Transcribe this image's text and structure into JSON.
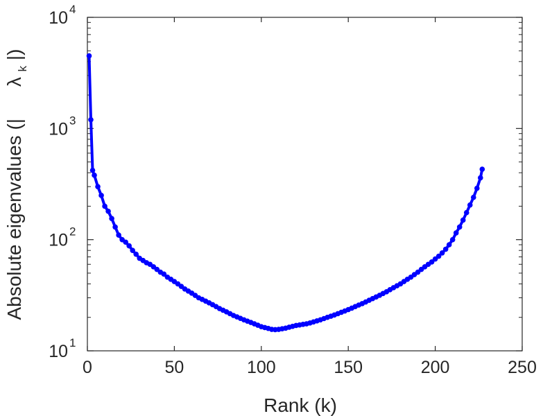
{
  "chart_data": {
    "type": "line",
    "xlabel": "Rank (k)",
    "ylabel": "Absolute eigenvalues (|   λ k|)",
    "ylabel_parts": {
      "prefix": "Absolute eigenvalues (|",
      "lambda": "λ",
      "subscript": "k",
      "suffix": "|)"
    },
    "xlim": [
      0,
      250
    ],
    "ylim": [
      10,
      10000
    ],
    "yscale": "log",
    "x_ticks": [
      {
        "value": 0,
        "label": "0"
      },
      {
        "value": 50,
        "label": "50"
      },
      {
        "value": 100,
        "label": "100"
      },
      {
        "value": 150,
        "label": "150"
      },
      {
        "value": 200,
        "label": "200"
      },
      {
        "value": 250,
        "label": "250"
      }
    ],
    "y_ticks": [
      {
        "value": 10,
        "base": "10",
        "exp": "1"
      },
      {
        "value": 100,
        "base": "10",
        "exp": "2"
      },
      {
        "value": 1000,
        "base": "10",
        "exp": "3"
      },
      {
        "value": 10000,
        "base": "10",
        "exp": "4"
      }
    ],
    "grid": false,
    "color": "#0000ff",
    "series": [
      {
        "marker": "circle",
        "x": [
          1,
          2,
          3,
          4,
          6,
          8,
          10,
          12,
          14,
          16,
          18,
          20,
          22,
          24,
          26,
          28,
          30,
          32,
          34,
          36,
          38,
          40,
          42,
          44,
          46,
          48,
          50,
          52,
          54,
          56,
          58,
          60,
          62,
          64,
          66,
          68,
          70,
          72,
          74,
          76,
          78,
          80,
          82,
          84,
          86,
          88,
          90,
          92,
          94,
          96,
          98,
          100,
          102,
          104,
          106,
          108,
          110,
          112,
          114,
          116,
          118,
          120,
          122,
          124,
          126,
          128,
          130,
          132,
          134,
          136,
          138,
          140,
          142,
          144,
          146,
          148,
          150,
          152,
          154,
          156,
          158,
          160,
          162,
          164,
          166,
          168,
          170,
          172,
          174,
          176,
          178,
          180,
          182,
          184,
          186,
          188,
          190,
          192,
          194,
          196,
          198,
          200,
          202,
          204,
          206,
          208,
          210,
          212,
          214,
          216,
          218,
          220,
          222,
          224,
          226,
          227
        ],
        "y": [
          4500,
          1200,
          420,
          380,
          300,
          250,
          200,
          180,
          155,
          130,
          110,
          100,
          95,
          88,
          80,
          74,
          68,
          65,
          62,
          60,
          57,
          54,
          51,
          49,
          46,
          44,
          42,
          40,
          38,
          36,
          34.5,
          33,
          31.5,
          30,
          29,
          28,
          27,
          26,
          25,
          24,
          23.2,
          22.4,
          21.6,
          20.8,
          20.2,
          19.6,
          19,
          18.5,
          18,
          17.5,
          17,
          16.5,
          16.2,
          15.9,
          15.6,
          15.5,
          15.6,
          15.8,
          16,
          16.3,
          16.6,
          16.9,
          17.1,
          17.3,
          17.5,
          17.8,
          18.2,
          18.6,
          19,
          19.5,
          20,
          20.5,
          21,
          21.6,
          22.2,
          22.8,
          23.5,
          24.2,
          25,
          25.8,
          26.6,
          27.5,
          28.5,
          29.5,
          30.5,
          31.6,
          32.8,
          34,
          35.5,
          37,
          38.5,
          40,
          42,
          44,
          46,
          48.5,
          51,
          54,
          57,
          60,
          63,
          67,
          71,
          76,
          82,
          90,
          100,
          115,
          130,
          150,
          175,
          205,
          240,
          290,
          360,
          430
        ]
      }
    ]
  }
}
